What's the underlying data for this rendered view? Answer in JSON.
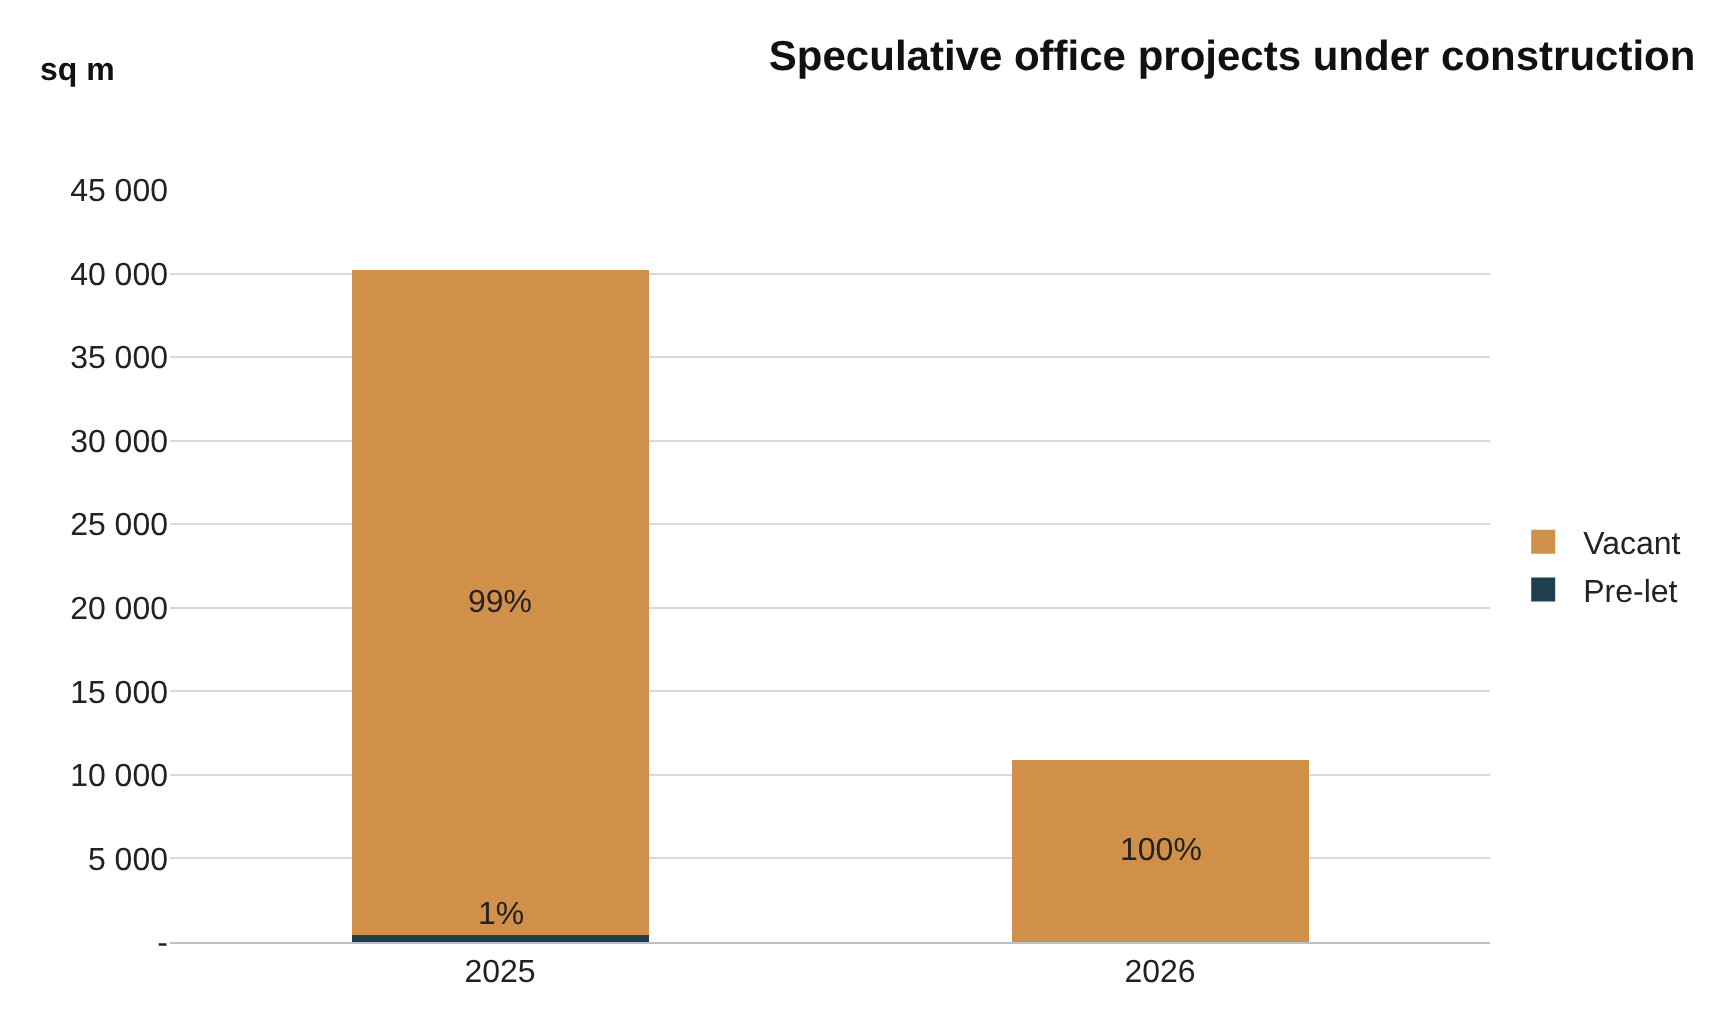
{
  "chart_data": {
    "type": "bar",
    "title": "Speculative office projects under construction",
    "ylabel": "sq m",
    "categories": [
      "2025",
      "2026"
    ],
    "stacked": true,
    "series": [
      {
        "name": "Pre-let",
        "color": "#1f3f4f",
        "values": [
          400,
          0
        ]
      },
      {
        "name": "Vacant",
        "color": "#d0904a",
        "values": [
          39800,
          10900
        ]
      }
    ],
    "annotations": [
      "1%",
      "99%",
      "100%"
    ],
    "ylim": [
      0,
      45000
    ],
    "yticks": [
      {
        "value": 0,
        "label": "-"
      },
      {
        "value": 5000,
        "label": "5 000"
      },
      {
        "value": 10000,
        "label": "10 000"
      },
      {
        "value": 15000,
        "label": "15 000"
      },
      {
        "value": 20000,
        "label": "20 000"
      },
      {
        "value": 25000,
        "label": "25 000"
      },
      {
        "value": 30000,
        "label": "30 000"
      },
      {
        "value": 35000,
        "label": "35 000"
      },
      {
        "value": 40000,
        "label": "40 000"
      },
      {
        "value": 45000,
        "label": "45 000"
      }
    ],
    "grid": "y",
    "legend": "right"
  }
}
